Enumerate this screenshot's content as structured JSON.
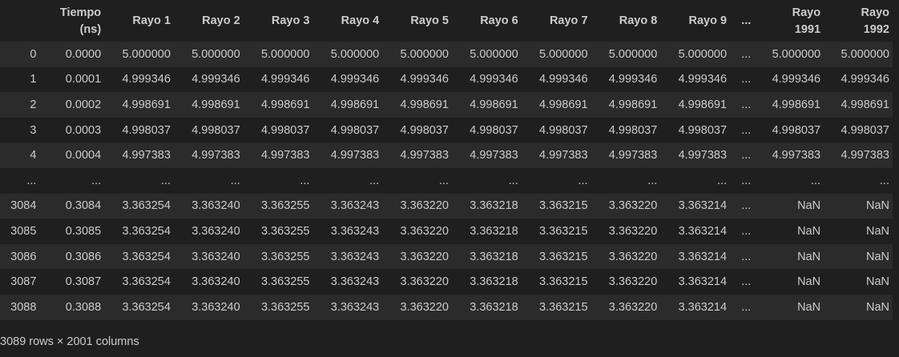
{
  "table": {
    "headers": [
      "",
      "Tiempo\n(ns)",
      "Rayo 1",
      "Rayo 2",
      "Rayo 3",
      "Rayo 4",
      "Rayo 5",
      "Rayo 6",
      "Rayo 7",
      "Rayo 8",
      "Rayo 9",
      "...",
      "Rayo\n1991",
      "Rayo\n1992"
    ],
    "rows": [
      [
        "0",
        "0.0000",
        "5.000000",
        "5.000000",
        "5.000000",
        "5.000000",
        "5.000000",
        "5.000000",
        "5.000000",
        "5.000000",
        "5.000000",
        "...",
        "5.000000",
        "5.000000"
      ],
      [
        "1",
        "0.0001",
        "4.999346",
        "4.999346",
        "4.999346",
        "4.999346",
        "4.999346",
        "4.999346",
        "4.999346",
        "4.999346",
        "4.999346",
        "...",
        "4.999346",
        "4.999346"
      ],
      [
        "2",
        "0.0002",
        "4.998691",
        "4.998691",
        "4.998691",
        "4.998691",
        "4.998691",
        "4.998691",
        "4.998691",
        "4.998691",
        "4.998691",
        "...",
        "4.998691",
        "4.998691"
      ],
      [
        "3",
        "0.0003",
        "4.998037",
        "4.998037",
        "4.998037",
        "4.998037",
        "4.998037",
        "4.998037",
        "4.998037",
        "4.998037",
        "4.998037",
        "...",
        "4.998037",
        "4.998037"
      ],
      [
        "4",
        "0.0004",
        "4.997383",
        "4.997383",
        "4.997383",
        "4.997383",
        "4.997383",
        "4.997383",
        "4.997383",
        "4.997383",
        "4.997383",
        "...",
        "4.997383",
        "4.997383"
      ],
      [
        "...",
        "...",
        "...",
        "...",
        "...",
        "...",
        "...",
        "...",
        "...",
        "...",
        "...",
        "...",
        "...",
        "..."
      ],
      [
        "3084",
        "0.3084",
        "3.363254",
        "3.363240",
        "3.363255",
        "3.363243",
        "3.363220",
        "3.363218",
        "3.363215",
        "3.363220",
        "3.363214",
        "...",
        "NaN",
        "NaN"
      ],
      [
        "3085",
        "0.3085",
        "3.363254",
        "3.363240",
        "3.363255",
        "3.363243",
        "3.363220",
        "3.363218",
        "3.363215",
        "3.363220",
        "3.363214",
        "...",
        "NaN",
        "NaN"
      ],
      [
        "3086",
        "0.3086",
        "3.363254",
        "3.363240",
        "3.363255",
        "3.363243",
        "3.363220",
        "3.363218",
        "3.363215",
        "3.363220",
        "3.363214",
        "...",
        "NaN",
        "NaN"
      ],
      [
        "3087",
        "0.3087",
        "3.363254",
        "3.363240",
        "3.363255",
        "3.363243",
        "3.363220",
        "3.363218",
        "3.363215",
        "3.363220",
        "3.363214",
        "...",
        "NaN",
        "NaN"
      ],
      [
        "3088",
        "0.3088",
        "3.363254",
        "3.363240",
        "3.363255",
        "3.363243",
        "3.363220",
        "3.363218",
        "3.363215",
        "3.363220",
        "3.363214",
        "...",
        "NaN",
        "NaN"
      ]
    ]
  },
  "footer": {
    "shape_text": "3089 rows × 2001 columns"
  },
  "colors": {
    "background": "#1f1f1f",
    "stripe": "#2b2b2b",
    "text": "#cccccc"
  }
}
